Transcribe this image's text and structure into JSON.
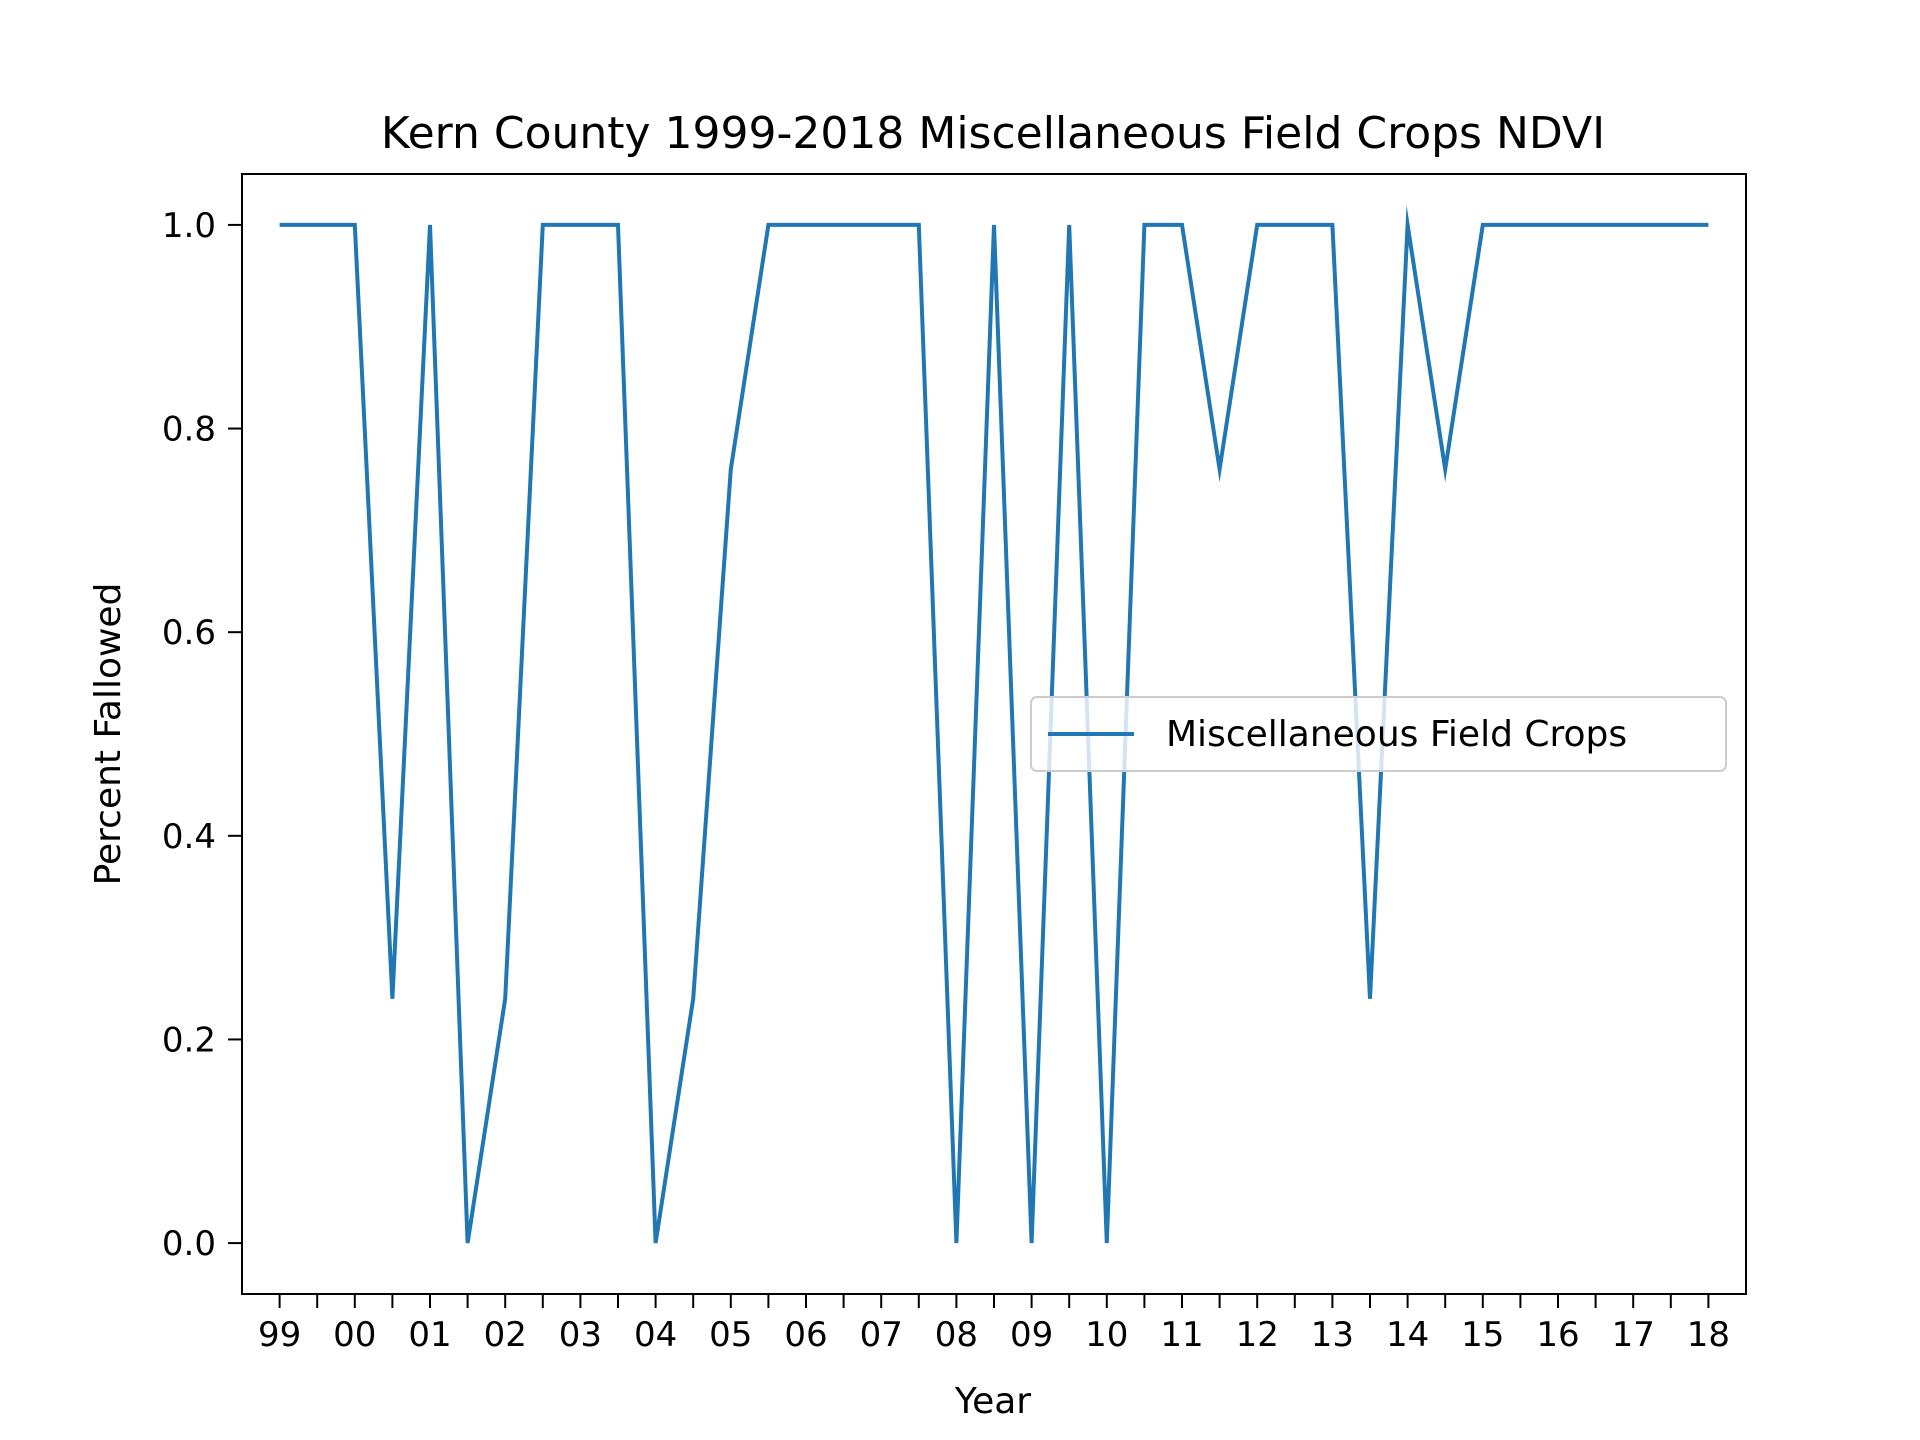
{
  "chart_data": {
    "type": "line",
    "title": "Kern County 1999-2018 Miscellaneous Field Crops NDVI",
    "xlabel": "Year",
    "ylabel": "Percent Fallowed",
    "x_tick_labels": [
      "99",
      "00",
      "01",
      "02",
      "03",
      "04",
      "05",
      "06",
      "07",
      "08",
      "09",
      "10",
      "11",
      "12",
      "13",
      "14",
      "15",
      "16",
      "17",
      "18"
    ],
    "y_ticks": [
      0.0,
      0.2,
      0.4,
      0.6,
      0.8,
      1.0
    ],
    "y_tick_labels": [
      "0.0",
      "0.2",
      "0.4",
      "0.6",
      "0.8",
      "1.0"
    ],
    "xlim": [
      -0.5,
      19.5
    ],
    "ylim": [
      -0.05,
      1.05
    ],
    "grid": false,
    "legend_position": "center-right",
    "series": [
      {
        "name": "Miscellaneous Field Crops",
        "color": "#1f77b4",
        "x": [
          0,
          0.5,
          1,
          1.5,
          2,
          2.5,
          3,
          3.5,
          4,
          4.5,
          5,
          5.5,
          6,
          6.5,
          7,
          7.5,
          8,
          8.5,
          9,
          9.5,
          10,
          10.5,
          11,
          11.5,
          12,
          12.5,
          13,
          13.5,
          14,
          14.5,
          15,
          15.5,
          16,
          16.5,
          17,
          17.5,
          18,
          18.5,
          19
        ],
        "y": [
          1.0,
          1.0,
          1.0,
          0.24,
          1.0,
          0.0,
          0.24,
          1.0,
          1.0,
          1.0,
          0.0,
          0.24,
          0.76,
          1.0,
          1.0,
          1.0,
          1.0,
          1.0,
          0.0,
          1.0,
          0.0,
          1.0,
          0.0,
          1.0,
          1.0,
          0.76,
          1.0,
          1.0,
          1.0,
          0.24,
          1.0,
          0.76,
          1.0,
          1.0,
          1.0,
          1.0,
          1.0,
          1.0,
          1.0
        ]
      }
    ]
  }
}
